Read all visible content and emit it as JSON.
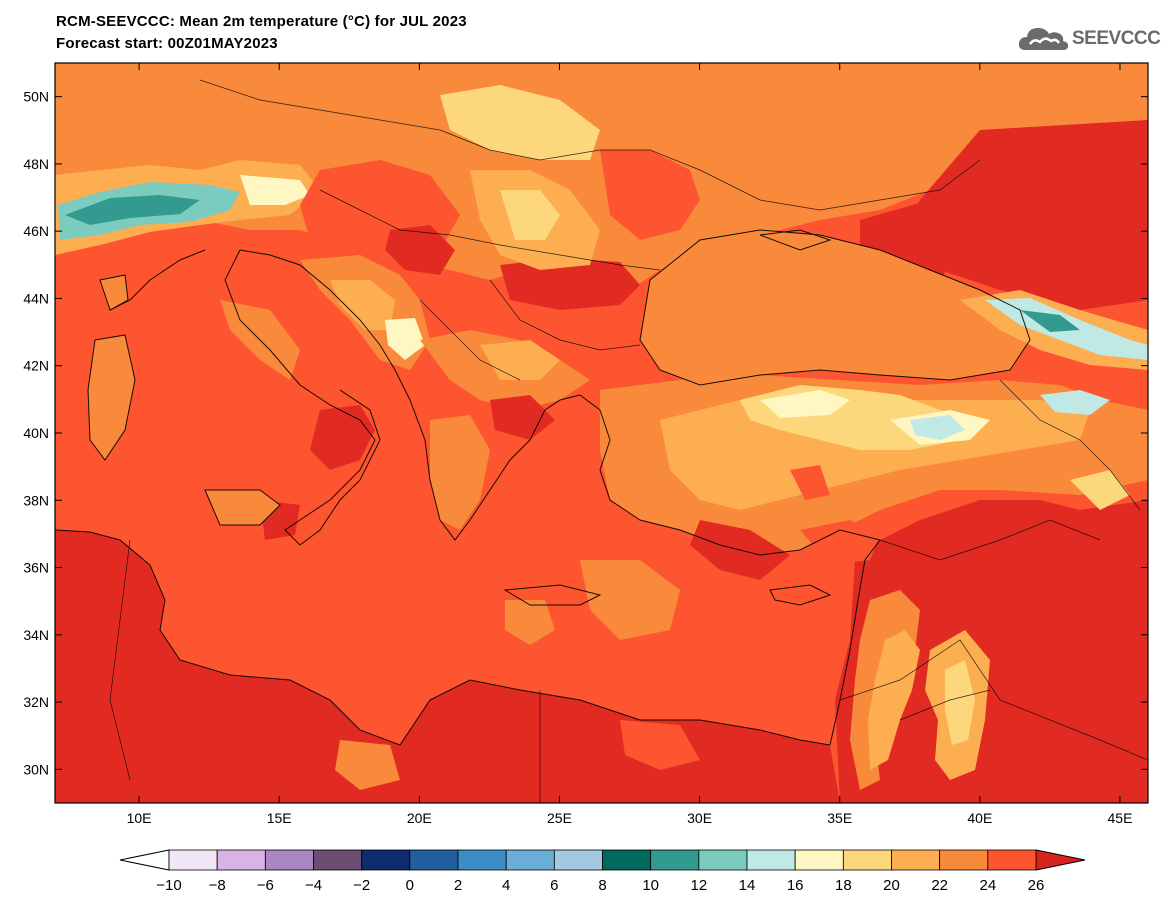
{
  "header": {
    "title_line1": "RCM-SEEVCCC: Mean 2m temperature (°C) for JUL 2023",
    "title_line2": "Forecast start: 00Z01MAY2023"
  },
  "logo": {
    "text": "SEEVCCC",
    "icon": "cloud-icon"
  },
  "map": {
    "lon_range": [
      7,
      46
    ],
    "lat_range": [
      29,
      51
    ],
    "lat_ticks": [
      {
        "value": 50,
        "label": "50N"
      },
      {
        "value": 48,
        "label": "48N"
      },
      {
        "value": 46,
        "label": "46N"
      },
      {
        "value": 44,
        "label": "44N"
      },
      {
        "value": 42,
        "label": "42N"
      },
      {
        "value": 40,
        "label": "40N"
      },
      {
        "value": 38,
        "label": "38N"
      },
      {
        "value": 36,
        "label": "36N"
      },
      {
        "value": 34,
        "label": "34N"
      },
      {
        "value": 32,
        "label": "32N"
      },
      {
        "value": 30,
        "label": "30N"
      }
    ],
    "lon_ticks": [
      {
        "value": 10,
        "label": "10E"
      },
      {
        "value": 15,
        "label": "15E"
      },
      {
        "value": 20,
        "label": "20E"
      },
      {
        "value": 25,
        "label": "25E"
      },
      {
        "value": 30,
        "label": "30E"
      },
      {
        "value": 35,
        "label": "35E"
      },
      {
        "value": 40,
        "label": "40E"
      },
      {
        "value": 45,
        "label": "45E"
      }
    ],
    "palette": {
      "ocean": "#fd5530",
      "warm_land": "#e12a22",
      "orange": "#fa8a3b",
      "light_orange": "#fcae50",
      "yellow": "#fdd77c",
      "pale_yellow": "#fef7c2",
      "pale_cyan": "#c0e8e4",
      "cyan": "#7ccbbf",
      "teal": "#329a8e"
    }
  },
  "colorbar": {
    "levels": [
      "−10",
      "−8",
      "−6",
      "−4",
      "−2",
      "0",
      "2",
      "4",
      "6",
      "8",
      "10",
      "12",
      "14",
      "16",
      "18",
      "20",
      "22",
      "24",
      "26"
    ],
    "low_color": "#ffffff",
    "high_color": "#d7231f",
    "colors": [
      "#f1e6f5",
      "#d8b3e3",
      "#a987c2",
      "#6a4f72",
      "#0d2c6e",
      "#215f9e",
      "#3c8cc5",
      "#6aaed8",
      "#a3c9e2",
      "#006a5d",
      "#329a8e",
      "#7ccbbf",
      "#c0e8e4",
      "#fef7c2",
      "#fdd77c",
      "#fcae50",
      "#fa8a3b",
      "#fd5530"
    ]
  }
}
